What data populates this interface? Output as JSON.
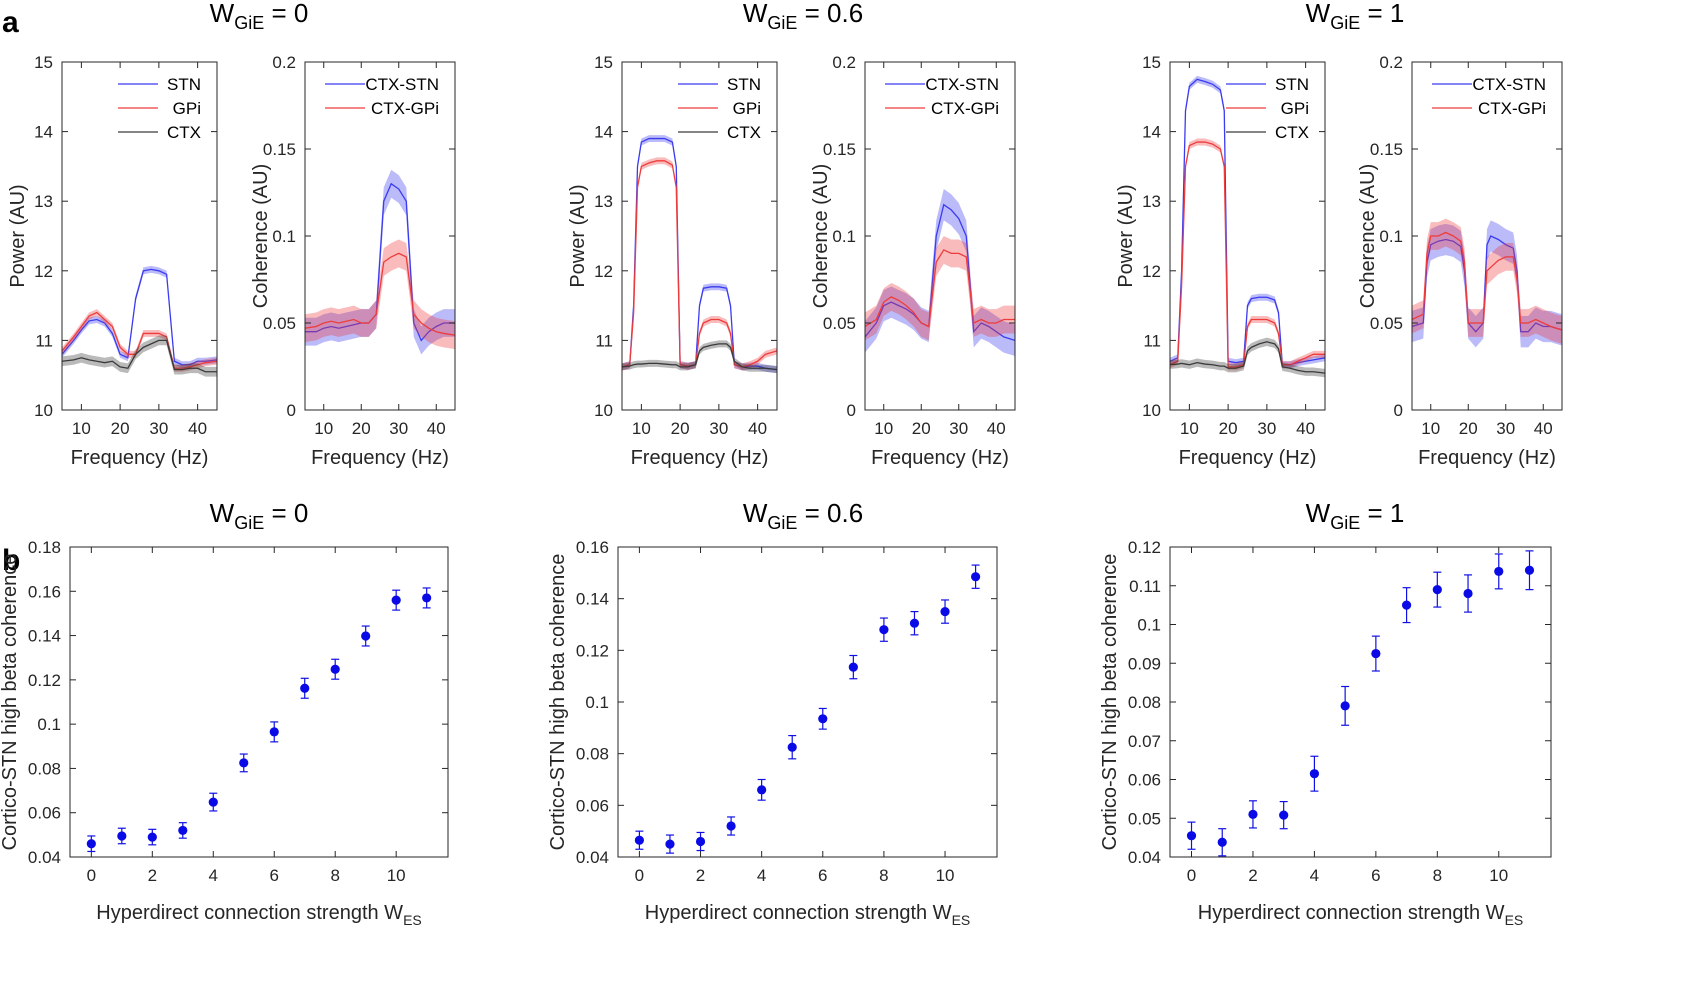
{
  "panel_labels": [
    "a",
    "b"
  ],
  "chart_data": [
    {
      "type": "line",
      "panel": "a",
      "title_main": "W",
      "title_sub": "GiE",
      "title_value": " = 0",
      "xlabel": "Frequency (Hz)",
      "ylabel": "Power (AU)",
      "xlim": [
        5,
        45
      ],
      "ylim": [
        10,
        15
      ],
      "xticks": [
        10,
        20,
        30,
        40
      ],
      "yticks": [
        10,
        11,
        12,
        13,
        14,
        15
      ],
      "x": [
        5,
        8,
        10,
        12,
        14,
        16,
        18,
        20,
        22,
        24,
        26,
        28,
        30,
        32,
        34,
        36,
        38,
        40,
        42,
        45
      ],
      "series": [
        {
          "name": "STN",
          "color": "#3b3bf0",
          "band": 0.05,
          "values": [
            10.8,
            11.0,
            11.15,
            11.28,
            11.3,
            11.25,
            11.1,
            10.8,
            10.75,
            11.6,
            12.0,
            12.02,
            12.0,
            11.95,
            10.7,
            10.65,
            10.65,
            10.7,
            10.7,
            10.72
          ]
        },
        {
          "name": "GPi",
          "color": "#ee3c3c",
          "band": 0.05,
          "values": [
            10.85,
            11.05,
            11.2,
            11.35,
            11.4,
            11.3,
            11.2,
            10.9,
            10.8,
            10.8,
            11.1,
            11.1,
            11.1,
            11.05,
            10.6,
            10.6,
            10.62,
            10.65,
            10.68,
            10.7
          ]
        },
        {
          "name": "CTX",
          "color": "#3a3a3a",
          "band": 0.07,
          "values": [
            10.7,
            10.72,
            10.75,
            10.72,
            10.7,
            10.68,
            10.7,
            10.62,
            10.6,
            10.8,
            10.9,
            10.95,
            11.0,
            11.0,
            10.58,
            10.58,
            10.6,
            10.6,
            10.55,
            10.55
          ]
        }
      ]
    },
    {
      "type": "line",
      "panel": "a",
      "xlabel": "Frequency (Hz)",
      "ylabel": "Coherence (AU)",
      "xlim": [
        5,
        45
      ],
      "ylim": [
        0,
        0.2
      ],
      "xticks": [
        10,
        20,
        30,
        40
      ],
      "yticks": [
        0,
        0.05,
        0.1,
        0.15,
        0.2
      ],
      "x": [
        5,
        8,
        10,
        12,
        14,
        16,
        18,
        20,
        22,
        24,
        26,
        28,
        30,
        32,
        34,
        36,
        38,
        40,
        42,
        45
      ],
      "series": [
        {
          "name": "CTX-STN",
          "color": "#3b3bf0",
          "band": 0.008,
          "values": [
            0.045,
            0.045,
            0.047,
            0.048,
            0.047,
            0.048,
            0.049,
            0.05,
            0.05,
            0.055,
            0.12,
            0.13,
            0.127,
            0.12,
            0.05,
            0.04,
            0.045,
            0.048,
            0.05,
            0.05
          ]
        },
        {
          "name": "CTX-GPi",
          "color": "#ee3c3c",
          "band": 0.008,
          "values": [
            0.047,
            0.048,
            0.05,
            0.051,
            0.05,
            0.051,
            0.052,
            0.05,
            0.05,
            0.055,
            0.085,
            0.088,
            0.09,
            0.088,
            0.055,
            0.05,
            0.047,
            0.045,
            0.044,
            0.043
          ]
        }
      ]
    },
    {
      "type": "line",
      "panel": "a",
      "title_main": "W",
      "title_sub": "GiE",
      "title_value": " = 0.6",
      "xlabel": "Frequency (Hz)",
      "ylabel": "Power (AU)",
      "xlim": [
        5,
        45
      ],
      "ylim": [
        10,
        15
      ],
      "xticks": [
        10,
        20,
        30,
        40
      ],
      "yticks": [
        10,
        11,
        12,
        13,
        14,
        15
      ],
      "x": [
        5,
        7,
        8,
        9,
        10,
        12,
        14,
        16,
        18,
        19,
        20,
        22,
        24,
        25,
        26,
        28,
        30,
        32,
        33,
        34,
        36,
        38,
        40,
        42,
        45
      ],
      "series": [
        {
          "name": "STN",
          "color": "#3b3bf0",
          "band": 0.05,
          "values": [
            10.62,
            10.65,
            11.5,
            13.5,
            13.85,
            13.9,
            13.9,
            13.9,
            13.85,
            13.5,
            10.65,
            10.63,
            10.65,
            11.5,
            11.75,
            11.77,
            11.77,
            11.75,
            11.5,
            10.65,
            10.62,
            10.63,
            10.63,
            10.6,
            10.58
          ]
        },
        {
          "name": "GPi",
          "color": "#ee3c3c",
          "band": 0.05,
          "values": [
            10.62,
            10.65,
            11.4,
            13.2,
            13.5,
            13.55,
            13.58,
            13.58,
            13.52,
            13.2,
            10.65,
            10.63,
            10.65,
            11.1,
            11.25,
            11.3,
            11.3,
            11.25,
            11.1,
            10.65,
            10.62,
            10.65,
            10.7,
            10.8,
            10.85
          ]
        },
        {
          "name": "CTX",
          "color": "#3a3a3a",
          "band": 0.05,
          "values": [
            10.62,
            10.63,
            10.65,
            10.66,
            10.66,
            10.67,
            10.67,
            10.66,
            10.65,
            10.65,
            10.62,
            10.62,
            10.65,
            10.85,
            10.9,
            10.93,
            10.95,
            10.95,
            10.9,
            10.7,
            10.62,
            10.6,
            10.6,
            10.6,
            10.58
          ]
        }
      ]
    },
    {
      "type": "line",
      "panel": "a",
      "xlabel": "Frequency (Hz)",
      "ylabel": "Coherence (AU)",
      "xlim": [
        5,
        45
      ],
      "ylim": [
        0,
        0.2
      ],
      "xticks": [
        10,
        20,
        30,
        40
      ],
      "yticks": [
        0,
        0.05,
        0.1,
        0.15,
        0.2
      ],
      "x": [
        5,
        8,
        10,
        12,
        14,
        16,
        18,
        20,
        22,
        24,
        26,
        28,
        30,
        32,
        34,
        36,
        38,
        40,
        42,
        45
      ],
      "series": [
        {
          "name": "CTX-STN",
          "color": "#3b3bf0",
          "band": 0.009,
          "values": [
            0.042,
            0.05,
            0.06,
            0.062,
            0.06,
            0.058,
            0.055,
            0.05,
            0.048,
            0.1,
            0.118,
            0.115,
            0.11,
            0.1,
            0.045,
            0.05,
            0.048,
            0.045,
            0.042,
            0.04
          ]
        },
        {
          "name": "CTX-GPi",
          "color": "#ee3c3c",
          "band": 0.008,
          "values": [
            0.048,
            0.052,
            0.062,
            0.065,
            0.063,
            0.06,
            0.056,
            0.05,
            0.048,
            0.085,
            0.092,
            0.09,
            0.09,
            0.088,
            0.05,
            0.052,
            0.05,
            0.05,
            0.052,
            0.052
          ]
        }
      ]
    },
    {
      "type": "line",
      "panel": "a",
      "title_main": "W",
      "title_sub": "GiE",
      "title_value": " = 1",
      "xlabel": "Frequency (Hz)",
      "ylabel": "Power (AU)",
      "xlim": [
        5,
        45
      ],
      "ylim": [
        10,
        15
      ],
      "xticks": [
        10,
        20,
        30,
        40
      ],
      "yticks": [
        10,
        11,
        12,
        13,
        14,
        15
      ],
      "x": [
        5,
        7,
        8,
        9,
        10,
        12,
        14,
        16,
        18,
        19,
        20,
        22,
        24,
        25,
        26,
        28,
        30,
        32,
        33,
        34,
        36,
        38,
        40,
        42,
        45
      ],
      "series": [
        {
          "name": "STN",
          "color": "#3b3bf0",
          "band": 0.05,
          "values": [
            10.7,
            10.75,
            12.0,
            14.3,
            14.65,
            14.75,
            14.72,
            14.68,
            14.6,
            14.3,
            10.7,
            10.68,
            10.7,
            11.5,
            11.6,
            11.62,
            11.62,
            11.58,
            11.4,
            10.65,
            10.65,
            10.68,
            10.7,
            10.72,
            10.75
          ]
        },
        {
          "name": "GPi",
          "color": "#ee3c3c",
          "band": 0.05,
          "values": [
            10.65,
            10.7,
            11.8,
            13.5,
            13.8,
            13.85,
            13.85,
            13.82,
            13.75,
            13.5,
            10.62,
            10.62,
            10.65,
            11.2,
            11.3,
            11.3,
            11.3,
            11.25,
            11.1,
            10.65,
            10.65,
            10.7,
            10.75,
            10.8,
            10.8
          ]
        },
        {
          "name": "CTX",
          "color": "#3a3a3a",
          "band": 0.06,
          "values": [
            10.65,
            10.66,
            10.67,
            10.66,
            10.65,
            10.68,
            10.66,
            10.65,
            10.63,
            10.63,
            10.6,
            10.6,
            10.63,
            10.85,
            10.9,
            10.95,
            10.98,
            10.95,
            10.88,
            10.62,
            10.6,
            10.57,
            10.55,
            10.55,
            10.53
          ]
        }
      ]
    },
    {
      "type": "line",
      "panel": "a",
      "xlabel": "Frequency (Hz)",
      "ylabel": "Coherence (AU)",
      "xlim": [
        5,
        45
      ],
      "ylim": [
        0,
        0.2
      ],
      "xticks": [
        10,
        20,
        30,
        40
      ],
      "yticks": [
        0,
        0.05,
        0.1,
        0.15,
        0.2
      ],
      "x": [
        5,
        8,
        9,
        10,
        12,
        14,
        16,
        18,
        19,
        20,
        22,
        24,
        25,
        26,
        28,
        30,
        32,
        33,
        34,
        36,
        38,
        40,
        42,
        45
      ],
      "series": [
        {
          "name": "CTX-STN",
          "color": "#3b3bf0",
          "band": 0.009,
          "values": [
            0.048,
            0.05,
            0.085,
            0.095,
            0.097,
            0.098,
            0.097,
            0.094,
            0.08,
            0.05,
            0.045,
            0.05,
            0.095,
            0.1,
            0.098,
            0.095,
            0.093,
            0.08,
            0.045,
            0.045,
            0.05,
            0.048,
            0.048,
            0.046
          ]
        },
        {
          "name": "CTX-GPi",
          "color": "#ee3c3c",
          "band": 0.008,
          "values": [
            0.052,
            0.055,
            0.09,
            0.1,
            0.1,
            0.102,
            0.1,
            0.097,
            0.085,
            0.05,
            0.05,
            0.05,
            0.08,
            0.082,
            0.086,
            0.088,
            0.088,
            0.075,
            0.05,
            0.05,
            0.052,
            0.05,
            0.048,
            0.046
          ]
        }
      ]
    },
    {
      "type": "scatter",
      "panel": "b",
      "title_main": "W",
      "title_sub": "GiE",
      "title_value": " = 0",
      "xlabel_main": "Hyperdirect connection strength W",
      "xlabel_sub": "ES",
      "ylabel": "Cortico-STN high beta coherence",
      "xlim": [
        -0.7,
        11.7
      ],
      "ylim": [
        0.04,
        0.18
      ],
      "xticks": [
        0,
        2,
        4,
        6,
        8,
        10
      ],
      "yticks": [
        0.04,
        0.06,
        0.08,
        0.1,
        0.12,
        0.14,
        0.16,
        0.18
      ],
      "x": [
        0,
        1,
        2,
        3,
        4,
        5,
        6,
        7,
        8,
        9,
        10,
        11
      ],
      "values": [
        0.046,
        0.0495,
        0.049,
        0.052,
        0.0648,
        0.0825,
        0.0965,
        0.1162,
        0.1248,
        0.1398,
        0.156,
        0.157
      ],
      "errors": [
        0.0035,
        0.0035,
        0.0035,
        0.0035,
        0.004,
        0.004,
        0.0045,
        0.0045,
        0.0045,
        0.0045,
        0.0045,
        0.0045
      ]
    },
    {
      "type": "scatter",
      "panel": "b",
      "title_main": "W",
      "title_sub": "GiE",
      "title_value": " = 0.6",
      "xlabel_main": "Hyperdirect connection strength W",
      "xlabel_sub": "ES",
      "ylabel": "Cortico-STN high beta coherence",
      "xlim": [
        -0.7,
        11.7
      ],
      "ylim": [
        0.04,
        0.16
      ],
      "xticks": [
        0,
        2,
        4,
        6,
        8,
        10
      ],
      "yticks": [
        0.04,
        0.06,
        0.08,
        0.1,
        0.12,
        0.14,
        0.16
      ],
      "x": [
        0,
        1,
        2,
        3,
        4,
        5,
        6,
        7,
        8,
        9,
        10,
        11
      ],
      "values": [
        0.0465,
        0.045,
        0.046,
        0.052,
        0.066,
        0.0825,
        0.0935,
        0.1135,
        0.128,
        0.1305,
        0.135,
        0.1485
      ],
      "errors": [
        0.0035,
        0.0035,
        0.0035,
        0.0035,
        0.004,
        0.0045,
        0.004,
        0.0045,
        0.0045,
        0.0045,
        0.0045,
        0.0045
      ]
    },
    {
      "type": "scatter",
      "panel": "b",
      "title_main": "W",
      "title_sub": "GiE",
      "title_value": " = 1",
      "xlabel_main": "Hyperdirect connection strength W",
      "xlabel_sub": "ES",
      "ylabel": "Cortico-STN high beta coherence",
      "xlim": [
        -0.7,
        11.7
      ],
      "ylim": [
        0.04,
        0.12
      ],
      "xticks": [
        0,
        2,
        4,
        6,
        8,
        10
      ],
      "yticks": [
        0.04,
        0.05,
        0.06,
        0.07,
        0.08,
        0.09,
        0.1,
        0.11,
        0.12
      ],
      "x": [
        0,
        1,
        2,
        3,
        4,
        5,
        6,
        7,
        8,
        9,
        10,
        11
      ],
      "values": [
        0.0455,
        0.0438,
        0.051,
        0.0508,
        0.0615,
        0.079,
        0.0925,
        0.105,
        0.109,
        0.108,
        0.1137,
        0.114
      ],
      "errors": [
        0.0035,
        0.0035,
        0.0035,
        0.0035,
        0.0045,
        0.005,
        0.0045,
        0.0045,
        0.0045,
        0.0048,
        0.0045,
        0.005
      ]
    }
  ]
}
